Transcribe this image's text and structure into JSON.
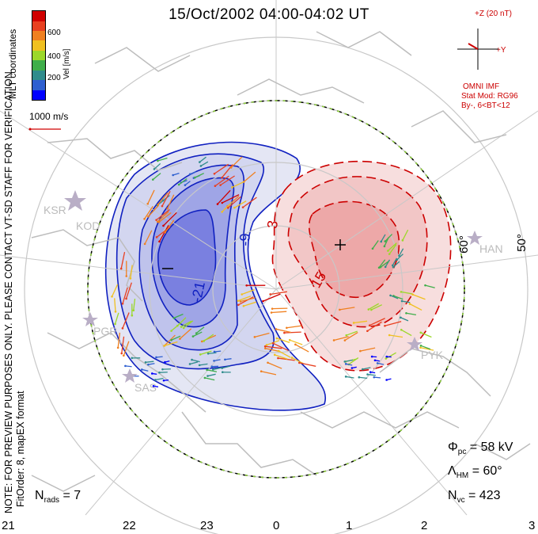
{
  "title": "15/Oct/2002 04:00-04:02 UT",
  "side_notes": {
    "coords": "MLT coordinates",
    "note": "NOTE: FOR PREVIEW PURPOSES ONLY. PLEASE CONTACT VT-SD STAFF FOR VERIFICATION.",
    "fitorder": "FitOrder: 8, mapEX format"
  },
  "velocity_scale": {
    "label": "Vel [m/s]",
    "ticks": [
      "600",
      "400",
      "200"
    ],
    "colors": [
      "#0000ff",
      "#2e5fd0",
      "#2f8c8c",
      "#3fae4a",
      "#9cd82a",
      "#f0c020",
      "#f08020",
      "#e84020",
      "#d00000"
    ],
    "reference_label": "1000 m/s",
    "reference_color": "#d00000"
  },
  "imf": {
    "z_label": "+Z (20 nT)",
    "y_label": "+Y",
    "source": "OMNI IMF",
    "model": "Stat Mod: RG96",
    "condition": "By-, 6<BT<12",
    "color": "#cc0000"
  },
  "contours": {
    "neg_labels": [
      "-9",
      "-21"
    ],
    "pos_labels": [
      "3",
      "15"
    ],
    "neg_color": "#1020c0",
    "pos_color": "#cc0000",
    "min_symbol": "−",
    "max_symbol": "+"
  },
  "latitudes": [
    "60°",
    "50°"
  ],
  "sites": [
    "KSR",
    "KOD",
    "PGR",
    "SAS",
    "HAN",
    "PYK"
  ],
  "stats": {
    "phi_pc": "58 kV",
    "lambda_hm": "60°",
    "n_vc": "423",
    "n_rads": "7"
  },
  "mlt_labels": [
    "21",
    "22",
    "23",
    "0",
    "1",
    "2",
    "3"
  ]
}
